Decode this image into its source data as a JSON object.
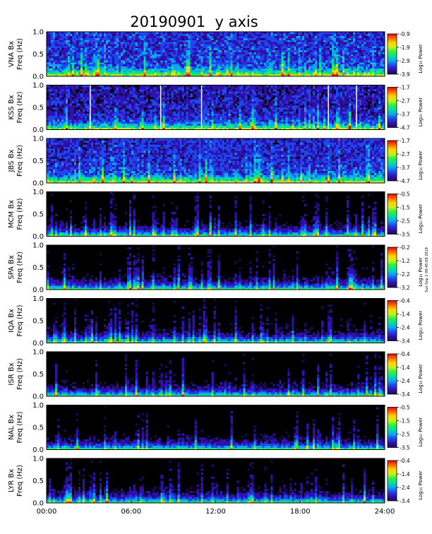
{
  "title": "20190901  y axis",
  "side_note": "Sun Sep 1 09:45:09 2019",
  "colorbar_unit": "Log₁₀ Power",
  "colormap": [
    "#1b0a5a",
    "#3010b0",
    "#1c48f0",
    "#0aa8f0",
    "#00e0a0",
    "#30f040",
    "#c8f018",
    "#ffd400",
    "#ff6a00",
    "#e80000"
  ],
  "background_color": "#000000",
  "chart_data": {
    "type": "heatmap",
    "x_unit": "UT",
    "xlim": [
      0,
      24
    ],
    "xticks": [
      0,
      6,
      12,
      18,
      24
    ],
    "xtick_labels": [
      "00:00",
      "06:00",
      "12:00",
      "18:00",
      "24:00"
    ],
    "ylim": [
      0,
      1
    ],
    "yticks": [
      0,
      0.5,
      1.0
    ],
    "ytick_labels": [
      "0.0",
      "0.5",
      "1.0"
    ],
    "ylabel_line2": "Freq (Hz)",
    "panels": [
      {
        "station": "VNA Bx",
        "cbar_ticks": [
          "-0.9",
          "-1.9",
          "-2.9",
          "-3.9"
        ],
        "floor": 0.2,
        "gaps": [],
        "events": []
      },
      {
        "station": "KSS Bx",
        "cbar_ticks": [
          "-1.7",
          "-2.7",
          "-3.7",
          "-4.7"
        ],
        "floor": 0.14,
        "gaps": [
          3.1,
          8.1,
          11.0,
          20.0,
          22.0
        ],
        "events": []
      },
      {
        "station": "JBS Bx",
        "cbar_ticks": [
          "-1.7",
          "-2.7",
          "-3.7",
          "-4.7"
        ],
        "floor": 0.18,
        "gaps": [],
        "events": []
      },
      {
        "station": "MCM Bx",
        "cbar_ticks": [
          "-0.5",
          "-1.5",
          "-2.5",
          "-3.5"
        ],
        "floor": 0.0,
        "gaps": [],
        "events": []
      },
      {
        "station": "SPA Bx",
        "cbar_ticks": [
          "-0.2",
          "-1.2",
          "-2.2",
          "-3.2"
        ],
        "floor": 0.0,
        "gaps": [],
        "events": []
      },
      {
        "station": "IQA Bx",
        "cbar_ticks": [
          "-0.4",
          "-1.4",
          "-2.4",
          "-3.4"
        ],
        "floor": 0.0,
        "gaps": [],
        "events": []
      },
      {
        "station": "ISR Bx",
        "cbar_ticks": [
          "-0.4",
          "-1.4",
          "-2.4",
          "-3.4"
        ],
        "floor": 0.0,
        "gaps": [],
        "events": []
      },
      {
        "station": "NAL Bx",
        "cbar_ticks": [
          "-0.5",
          "-1.5",
          "-2.5",
          "-3.5"
        ],
        "floor": 0.0,
        "gaps": [],
        "events": []
      },
      {
        "station": "LYR Bx",
        "cbar_ticks": [
          "-0.4",
          "-1.4",
          "-2.4",
          "-3.4"
        ],
        "floor": 0.0,
        "gaps": [],
        "events": []
      }
    ]
  }
}
